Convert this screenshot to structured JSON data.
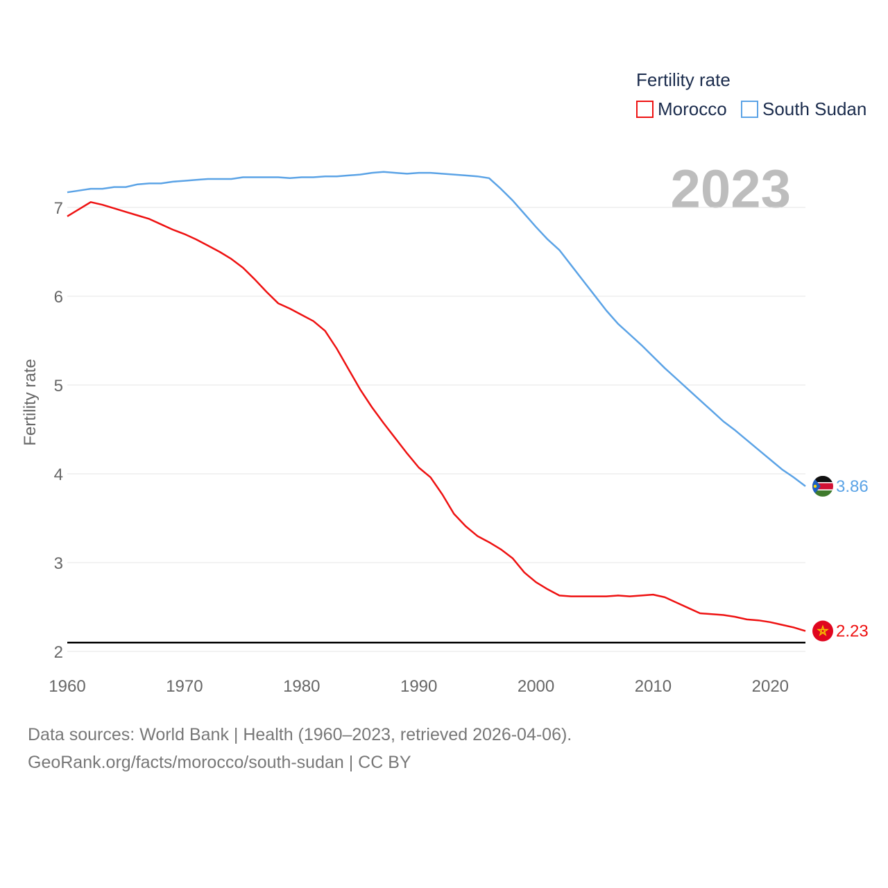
{
  "chart_data": {
    "type": "line",
    "title": "",
    "xlabel": "",
    "ylabel": "Fertility rate",
    "xlim": [
      1960,
      2023
    ],
    "ylim": [
      2,
      7.4
    ],
    "xticks": [
      1960,
      1970,
      1980,
      1990,
      2000,
      2010,
      2020
    ],
    "yticks": [
      2,
      3,
      4,
      5,
      6,
      7
    ],
    "current_year": "2023",
    "legend": {
      "title": "Fertility rate",
      "position": "top-right"
    },
    "reference_line": {
      "y": 2.1,
      "color": "#000000"
    },
    "x": [
      1960,
      1961,
      1962,
      1963,
      1964,
      1965,
      1966,
      1967,
      1968,
      1969,
      1970,
      1971,
      1972,
      1973,
      1974,
      1975,
      1976,
      1977,
      1978,
      1979,
      1980,
      1981,
      1982,
      1983,
      1984,
      1985,
      1986,
      1987,
      1988,
      1989,
      1990,
      1991,
      1992,
      1993,
      1994,
      1995,
      1996,
      1997,
      1998,
      1999,
      2000,
      2001,
      2002,
      2003,
      2004,
      2005,
      2006,
      2007,
      2008,
      2009,
      2010,
      2011,
      2012,
      2013,
      2014,
      2015,
      2016,
      2017,
      2018,
      2019,
      2020,
      2021,
      2022,
      2023
    ],
    "series": [
      {
        "name": "Morocco",
        "color": "#ee1111",
        "end_label": "2.23",
        "flag": "morocco-flag-icon",
        "values": [
          6.9,
          6.98,
          7.06,
          7.03,
          6.99,
          6.95,
          6.91,
          6.87,
          6.81,
          6.75,
          6.7,
          6.64,
          6.57,
          6.5,
          6.42,
          6.32,
          6.19,
          6.05,
          5.92,
          5.86,
          5.79,
          5.72,
          5.61,
          5.41,
          5.18,
          4.95,
          4.75,
          4.57,
          4.4,
          4.23,
          4.07,
          3.96,
          3.77,
          3.55,
          3.41,
          3.3,
          3.23,
          3.15,
          3.05,
          2.89,
          2.78,
          2.7,
          2.63,
          2.62,
          2.62,
          2.62,
          2.62,
          2.63,
          2.62,
          2.63,
          2.64,
          2.61,
          2.55,
          2.49,
          2.43,
          2.42,
          2.41,
          2.39,
          2.36,
          2.35,
          2.33,
          2.3,
          2.27,
          2.23
        ]
      },
      {
        "name": "South Sudan",
        "color": "#5ba3e6",
        "end_label": "3.86",
        "flag": "south-sudan-flag-icon",
        "values": [
          7.17,
          7.19,
          7.21,
          7.21,
          7.23,
          7.23,
          7.26,
          7.27,
          7.27,
          7.29,
          7.3,
          7.31,
          7.32,
          7.32,
          7.32,
          7.34,
          7.34,
          7.34,
          7.34,
          7.33,
          7.34,
          7.34,
          7.35,
          7.35,
          7.36,
          7.37,
          7.39,
          7.4,
          7.39,
          7.38,
          7.39,
          7.39,
          7.38,
          7.37,
          7.36,
          7.35,
          7.33,
          7.21,
          7.08,
          6.93,
          6.78,
          6.64,
          6.52,
          6.35,
          6.18,
          6.01,
          5.84,
          5.69,
          5.57,
          5.45,
          5.32,
          5.19,
          5.07,
          4.95,
          4.83,
          4.71,
          4.59,
          4.49,
          4.38,
          4.27,
          4.16,
          4.05,
          3.96,
          3.86
        ]
      }
    ]
  },
  "footer": {
    "line1": "Data sources: World Bank | Health (1960–2023, retrieved 2026-04-06).",
    "line2": "GeoRank.org/facts/morocco/south-sudan | CC BY"
  }
}
